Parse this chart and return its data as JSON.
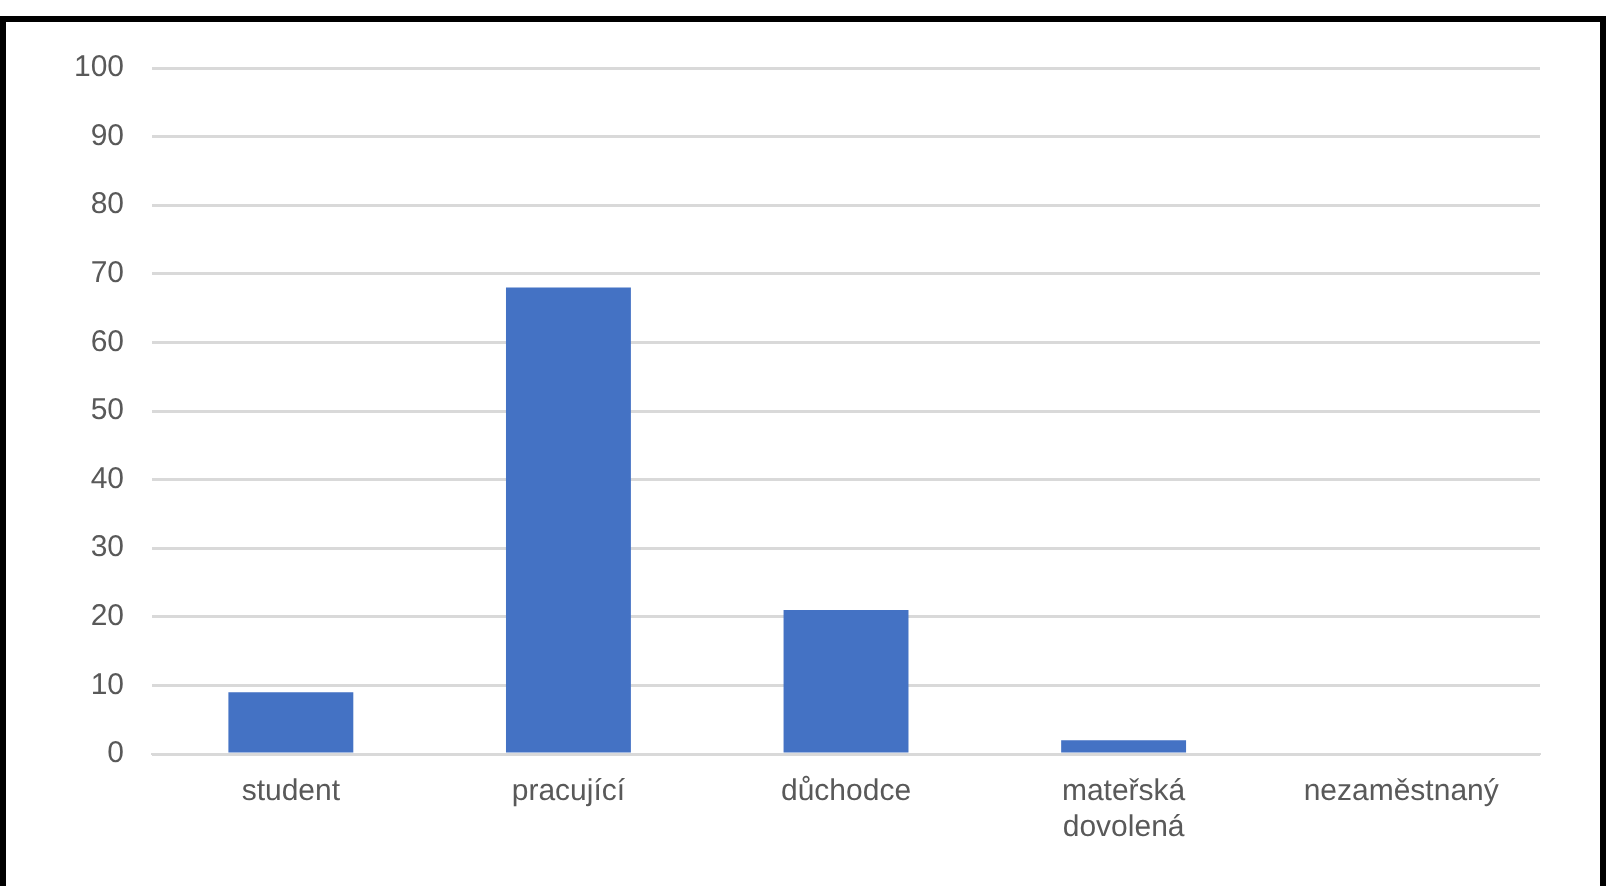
{
  "chart_data": {
    "type": "bar",
    "categories": [
      "student",
      "pracující",
      "důchodce",
      "mateřská dovolená",
      "nezaměstnaný"
    ],
    "values": [
      9,
      68,
      21,
      2,
      0
    ],
    "color": "#4472c4",
    "ylim": [
      0,
      100
    ],
    "yticks": [
      0,
      10,
      20,
      30,
      40,
      50,
      60,
      70,
      80,
      90,
      100
    ],
    "grid": "y"
  }
}
